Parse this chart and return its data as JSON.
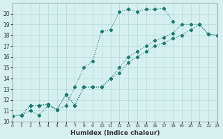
{
  "xlabel": "Humidex (Indice chaleur)",
  "background_color": "#d6f0f0",
  "line_color": "#1a7a6e",
  "xlim": [
    0,
    23
  ],
  "ylim": [
    10,
    21
  ],
  "xticks": [
    0,
    1,
    2,
    3,
    4,
    5,
    6,
    7,
    8,
    9,
    10,
    11,
    12,
    13,
    14,
    15,
    16,
    17,
    18,
    19,
    20,
    21,
    22,
    23
  ],
  "yticks": [
    10,
    11,
    12,
    13,
    14,
    15,
    16,
    17,
    18,
    19,
    20
  ],
  "curve1_x": [
    0,
    1,
    2,
    3,
    4,
    5,
    6,
    7,
    8,
    9,
    10,
    11,
    12,
    13,
    14,
    15,
    16,
    17,
    18
  ],
  "curve1_y": [
    10.5,
    10.6,
    11.0,
    10.6,
    11.5,
    11.1,
    11.5,
    13.2,
    15.0,
    15.6,
    18.4,
    18.5,
    20.2,
    20.4,
    20.2,
    20.4,
    20.4,
    20.5,
    19.3
  ],
  "curve2_x": [
    0,
    1,
    2,
    3,
    4,
    5,
    6,
    7,
    8,
    9,
    10,
    11,
    12,
    13,
    14,
    15,
    16,
    17,
    18,
    19,
    20,
    21,
    22,
    23
  ],
  "curve2_y": [
    10.5,
    10.6,
    11.5,
    11.5,
    11.6,
    11.1,
    12.5,
    11.5,
    13.2,
    13.2,
    13.2,
    14.0,
    15.0,
    16.0,
    16.5,
    17.0,
    17.5,
    17.8,
    18.2,
    19.0,
    19.0,
    19.0,
    18.1,
    18.0
  ],
  "curve3_x": [
    0,
    1,
    2,
    3,
    4,
    5,
    6,
    7,
    8,
    9,
    10,
    11,
    12,
    13,
    14,
    15,
    16,
    17,
    18,
    19,
    20,
    21,
    22,
    23
  ],
  "curve3_y": [
    10.5,
    10.6,
    11.5,
    11.5,
    11.6,
    11.1,
    12.5,
    11.5,
    13.2,
    13.2,
    13.2,
    14.0,
    14.5,
    15.5,
    16.0,
    16.5,
    17.0,
    17.3,
    17.7,
    18.0,
    18.5,
    19.0,
    18.1,
    18.0
  ]
}
